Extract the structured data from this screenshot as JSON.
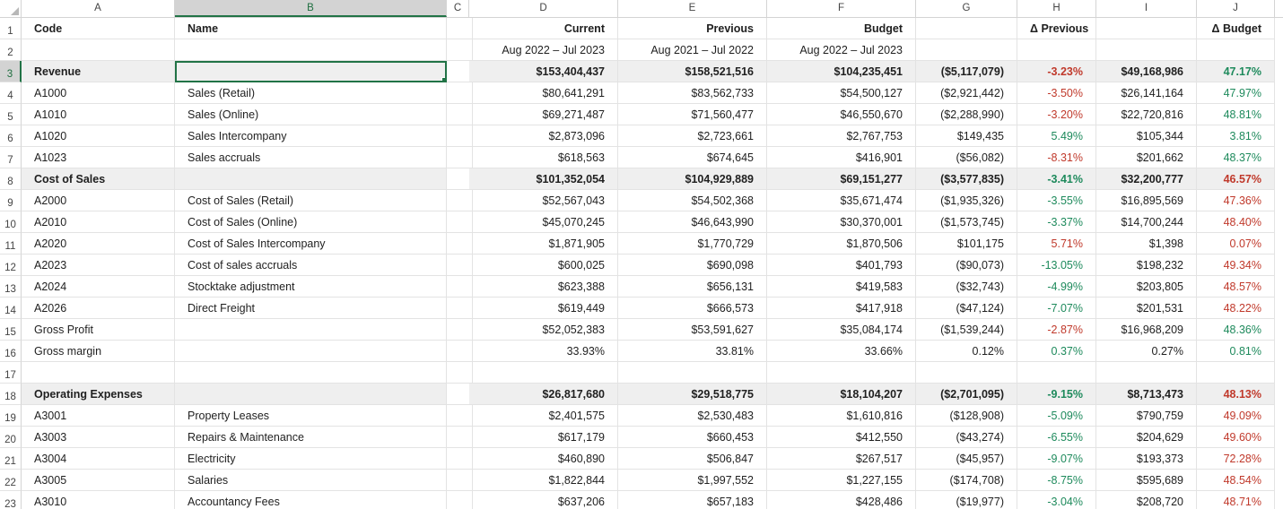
{
  "column_letters": [
    "A",
    "B",
    "C",
    "D",
    "E",
    "F",
    "G",
    "H",
    "I",
    "J"
  ],
  "selected_column": "B",
  "selected_row": "3",
  "header_rows": [
    {
      "num": "1",
      "cells": [
        "Code",
        "Name",
        "",
        "Current",
        "Previous",
        "Budget",
        "",
        "Δ Previous",
        "",
        "Δ Budget"
      ]
    },
    {
      "num": "2",
      "cells": [
        "",
        "",
        "",
        "Aug 2022 – Jul 2023",
        "Aug 2021 – Jul 2022",
        "Aug 2022 – Jul 2023",
        "",
        "",
        "",
        ""
      ]
    }
  ],
  "data_rows": [
    {
      "num": "3",
      "code": "Revenue",
      "name": "",
      "current": "$153,404,437",
      "previous": "$158,521,516",
      "budget": "$104,235,451",
      "dprev": "($5,117,079)",
      "dprev_pct": "-3.23%",
      "dbud": "$49,168,986",
      "dbud_pct": "47.17%",
      "style": "section",
      "dprev_pct_tone": "neg",
      "dbud_pct_tone": "pos"
    },
    {
      "num": "4",
      "code": "A1000",
      "name": "Sales (Retail)",
      "current": "$80,641,291",
      "previous": "$83,562,733",
      "budget": "$54,500,127",
      "dprev": "($2,921,442)",
      "dprev_pct": "-3.50%",
      "dbud": "$26,141,164",
      "dbud_pct": "47.97%",
      "style": "",
      "dprev_pct_tone": "neg",
      "dbud_pct_tone": "pos"
    },
    {
      "num": "5",
      "code": "A1010",
      "name": "Sales (Online)",
      "current": "$69,271,487",
      "previous": "$71,560,477",
      "budget": "$46,550,670",
      "dprev": "($2,288,990)",
      "dprev_pct": "-3.20%",
      "dbud": "$22,720,816",
      "dbud_pct": "48.81%",
      "style": "",
      "dprev_pct_tone": "neg",
      "dbud_pct_tone": "pos"
    },
    {
      "num": "6",
      "code": "A1020",
      "name": "Sales Intercompany",
      "current": "$2,873,096",
      "previous": "$2,723,661",
      "budget": "$2,767,753",
      "dprev": "$149,435",
      "dprev_pct": "5.49%",
      "dbud": "$105,344",
      "dbud_pct": "3.81%",
      "style": "",
      "dprev_pct_tone": "pos",
      "dbud_pct_tone": "pos"
    },
    {
      "num": "7",
      "code": "A1023",
      "name": "Sales accruals",
      "current": "$618,563",
      "previous": "$674,645",
      "budget": "$416,901",
      "dprev": "($56,082)",
      "dprev_pct": "-8.31%",
      "dbud": "$201,662",
      "dbud_pct": "48.37%",
      "style": "",
      "dprev_pct_tone": "neg",
      "dbud_pct_tone": "pos"
    },
    {
      "num": "8",
      "code": "Cost of Sales",
      "name": "",
      "current": "$101,352,054",
      "previous": "$104,929,889",
      "budget": "$69,151,277",
      "dprev": "($3,577,835)",
      "dprev_pct": "-3.41%",
      "dbud": "$32,200,777",
      "dbud_pct": "46.57%",
      "style": "section",
      "dprev_pct_tone": "pos",
      "dbud_pct_tone": "neg"
    },
    {
      "num": "9",
      "code": "A2000",
      "name": "Cost of Sales (Retail)",
      "current": "$52,567,043",
      "previous": "$54,502,368",
      "budget": "$35,671,474",
      "dprev": "($1,935,326)",
      "dprev_pct": "-3.55%",
      "dbud": "$16,895,569",
      "dbud_pct": "47.36%",
      "style": "",
      "dprev_pct_tone": "pos",
      "dbud_pct_tone": "neg"
    },
    {
      "num": "10",
      "code": "A2010",
      "name": "Cost of Sales (Online)",
      "current": "$45,070,245",
      "previous": "$46,643,990",
      "budget": "$30,370,001",
      "dprev": "($1,573,745)",
      "dprev_pct": "-3.37%",
      "dbud": "$14,700,244",
      "dbud_pct": "48.40%",
      "style": "",
      "dprev_pct_tone": "pos",
      "dbud_pct_tone": "neg"
    },
    {
      "num": "11",
      "code": "A2020",
      "name": "Cost of Sales Intercompany",
      "current": "$1,871,905",
      "previous": "$1,770,729",
      "budget": "$1,870,506",
      "dprev": "$101,175",
      "dprev_pct": "5.71%",
      "dbud": "$1,398",
      "dbud_pct": "0.07%",
      "style": "",
      "dprev_pct_tone": "neg",
      "dbud_pct_tone": "neg"
    },
    {
      "num": "12",
      "code": "A2023",
      "name": "Cost of sales accruals",
      "current": "$600,025",
      "previous": "$690,098",
      "budget": "$401,793",
      "dprev": "($90,073)",
      "dprev_pct": "-13.05%",
      "dbud": "$198,232",
      "dbud_pct": "49.34%",
      "style": "",
      "dprev_pct_tone": "pos",
      "dbud_pct_tone": "neg"
    },
    {
      "num": "13",
      "code": "A2024",
      "name": "Stocktake adjustment",
      "current": "$623,388",
      "previous": "$656,131",
      "budget": "$419,583",
      "dprev": "($32,743)",
      "dprev_pct": "-4.99%",
      "dbud": "$203,805",
      "dbud_pct": "48.57%",
      "style": "",
      "dprev_pct_tone": "pos",
      "dbud_pct_tone": "neg"
    },
    {
      "num": "14",
      "code": "A2026",
      "name": "Direct Freight",
      "current": "$619,449",
      "previous": "$666,573",
      "budget": "$417,918",
      "dprev": "($47,124)",
      "dprev_pct": "-7.07%",
      "dbud": "$201,531",
      "dbud_pct": "48.22%",
      "style": "",
      "dprev_pct_tone": "pos",
      "dbud_pct_tone": "neg"
    },
    {
      "num": "15",
      "code": "Gross Profit",
      "name": "",
      "current": "$52,052,383",
      "previous": "$53,591,627",
      "budget": "$35,084,174",
      "dprev": "($1,539,244)",
      "dprev_pct": "-2.87%",
      "dbud": "$16,968,209",
      "dbud_pct": "48.36%",
      "style": "",
      "dprev_pct_tone": "neg",
      "dbud_pct_tone": "pos"
    },
    {
      "num": "16",
      "code": "Gross margin",
      "name": "",
      "current": "33.93%",
      "previous": "33.81%",
      "budget": "33.66%",
      "dprev": "0.12%",
      "dprev_pct": "0.37%",
      "dbud": "0.27%",
      "dbud_pct": "0.81%",
      "style": "",
      "dprev_pct_tone": "pos",
      "dbud_pct_tone": "pos"
    },
    {
      "num": "17",
      "code": "",
      "name": "",
      "current": "",
      "previous": "",
      "budget": "",
      "dprev": "",
      "dprev_pct": "",
      "dbud": "",
      "dbud_pct": "",
      "style": "",
      "dprev_pct_tone": "",
      "dbud_pct_tone": ""
    },
    {
      "num": "18",
      "code": "Operating Expenses",
      "name": "",
      "current": "$26,817,680",
      "previous": "$29,518,775",
      "budget": "$18,104,207",
      "dprev": "($2,701,095)",
      "dprev_pct": "-9.15%",
      "dbud": "$8,713,473",
      "dbud_pct": "48.13%",
      "style": "section",
      "dprev_pct_tone": "pos",
      "dbud_pct_tone": "neg"
    },
    {
      "num": "19",
      "code": "A3001",
      "name": "Property Leases",
      "current": "$2,401,575",
      "previous": "$2,530,483",
      "budget": "$1,610,816",
      "dprev": "($128,908)",
      "dprev_pct": "-5.09%",
      "dbud": "$790,759",
      "dbud_pct": "49.09%",
      "style": "",
      "dprev_pct_tone": "pos",
      "dbud_pct_tone": "neg"
    },
    {
      "num": "20",
      "code": "A3003",
      "name": "Repairs & Maintenance",
      "current": "$617,179",
      "previous": "$660,453",
      "budget": "$412,550",
      "dprev": "($43,274)",
      "dprev_pct": "-6.55%",
      "dbud": "$204,629",
      "dbud_pct": "49.60%",
      "style": "",
      "dprev_pct_tone": "pos",
      "dbud_pct_tone": "neg"
    },
    {
      "num": "21",
      "code": "A3004",
      "name": "Electricity",
      "current": "$460,890",
      "previous": "$506,847",
      "budget": "$267,517",
      "dprev": "($45,957)",
      "dprev_pct": "-9.07%",
      "dbud": "$193,373",
      "dbud_pct": "72.28%",
      "style": "",
      "dprev_pct_tone": "pos",
      "dbud_pct_tone": "neg"
    },
    {
      "num": "22",
      "code": "A3005",
      "name": "Salaries",
      "current": "$1,822,844",
      "previous": "$1,997,552",
      "budget": "$1,227,155",
      "dprev": "($174,708)",
      "dprev_pct": "-8.75%",
      "dbud": "$595,689",
      "dbud_pct": "48.54%",
      "style": "",
      "dprev_pct_tone": "pos",
      "dbud_pct_tone": "neg"
    },
    {
      "num": "23",
      "code": "A3010",
      "name": "Accountancy Fees",
      "current": "$637,206",
      "previous": "$657,183",
      "budget": "$428,486",
      "dprev": "($19,977)",
      "dprev_pct": "-3.04%",
      "dbud": "$208,720",
      "dbud_pct": "48.71%",
      "style": "",
      "dprev_pct_tone": "pos",
      "dbud_pct_tone": "neg"
    }
  ]
}
